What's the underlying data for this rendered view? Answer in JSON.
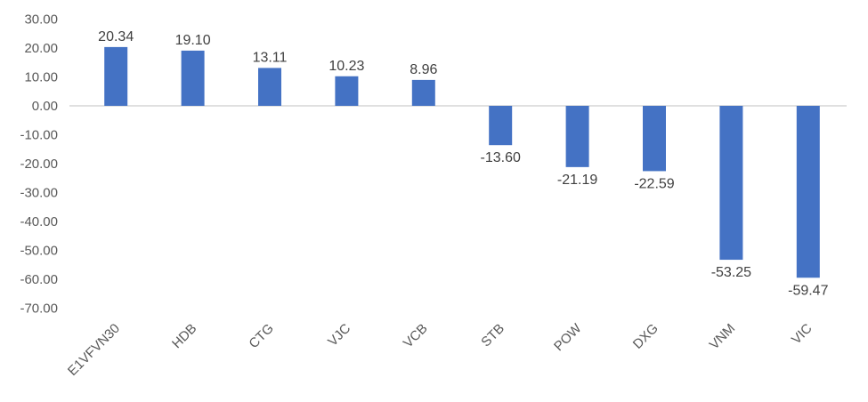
{
  "chart_data": {
    "type": "bar",
    "title": "",
    "xlabel": "",
    "ylabel": "",
    "categories": [
      "E1VFVN30",
      "HDB",
      "CTG",
      "VJC",
      "VCB",
      "STB",
      "POW",
      "DXG",
      "VNM",
      "VIC"
    ],
    "values": [
      20.34,
      19.1,
      13.11,
      10.23,
      8.96,
      -13.6,
      -21.19,
      -22.59,
      -53.25,
      -59.47
    ],
    "value_labels": [
      "20.34",
      "19.10",
      "13.11",
      "10.23",
      "8.96",
      "-13.60",
      "-21.19",
      "-22.59",
      "-53.25",
      "-59.47"
    ],
    "ylim": [
      -70,
      30
    ],
    "ytick_step": 10,
    "ytick_labels": [
      "30.00",
      "20.00",
      "10.00",
      "0.00",
      "-10.00",
      "-20.00",
      "-30.00",
      "-40.00",
      "-50.00",
      "-60.00",
      "-70.00"
    ],
    "grid": false,
    "legend_position": "none",
    "colors": {
      "bar": "#4472C4",
      "axis_line": "#D6D6D6",
      "tick_label": "#595959",
      "category_label": "#595959",
      "value_label": "#404040",
      "background": "#FFFFFF"
    }
  }
}
